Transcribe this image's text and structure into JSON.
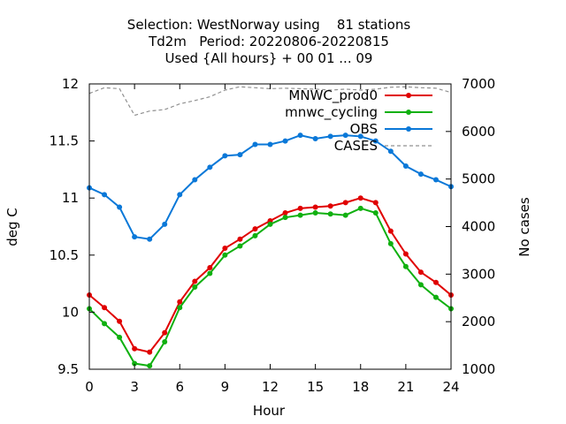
{
  "title_lines": [
    "Selection: WestNorway using    81 stations",
    "Td2m   Period: 20220806-20220815",
    "Used {All hours} + 00 01 ... 09"
  ],
  "colors": {
    "MNWC_prod0": "#e00000",
    "mnwc_cycling": "#10b010",
    "OBS": "#0a78d8",
    "CASES": "#909090"
  },
  "chart_data": {
    "type": "line",
    "title": "Selection: WestNorway using    81 stations\nTd2m   Period: 20220806-20220815\nUsed {All hours} + 00 01 ... 09",
    "xlabel": "Hour",
    "ylabel": "deg C",
    "y2label": "No cases",
    "xlim": [
      0,
      24
    ],
    "ylim": [
      9.5,
      12
    ],
    "y2lim": [
      1000,
      7000
    ],
    "x_ticks": [
      0,
      3,
      6,
      9,
      12,
      15,
      18,
      21,
      24
    ],
    "y_ticks": [
      9.5,
      10,
      10.5,
      11,
      11.5,
      12
    ],
    "y_tick_labels": [
      "9.5",
      "10",
      "10.5",
      "11",
      "11.5",
      "12"
    ],
    "y2_ticks": [
      1000,
      2000,
      3000,
      4000,
      5000,
      6000,
      7000
    ],
    "grid": false,
    "legend_position": "top-right",
    "x": [
      0,
      1,
      2,
      3,
      4,
      5,
      6,
      7,
      8,
      9,
      10,
      11,
      12,
      13,
      14,
      15,
      16,
      17,
      18,
      19,
      20,
      21,
      22,
      23,
      24
    ],
    "series": [
      {
        "name": "MNWC_prod0",
        "axis": "left",
        "values": [
          10.15,
          10.04,
          9.92,
          9.68,
          9.65,
          9.82,
          10.09,
          10.27,
          10.39,
          10.56,
          10.64,
          10.73,
          10.8,
          10.87,
          10.91,
          10.92,
          10.93,
          10.96,
          11.0,
          10.96,
          10.71,
          10.51,
          10.35,
          10.26,
          10.15
        ]
      },
      {
        "name": "mnwc_cycling",
        "axis": "left",
        "values": [
          10.03,
          9.9,
          9.78,
          9.55,
          9.53,
          9.74,
          10.04,
          10.22,
          10.34,
          10.5,
          10.58,
          10.67,
          10.77,
          10.83,
          10.85,
          10.87,
          10.86,
          10.85,
          10.91,
          10.87,
          10.6,
          10.4,
          10.24,
          10.13,
          10.03
        ]
      },
      {
        "name": "OBS",
        "axis": "left",
        "values": [
          11.09,
          11.03,
          10.92,
          10.66,
          10.64,
          10.77,
          11.03,
          11.16,
          11.27,
          11.37,
          11.38,
          11.47,
          11.47,
          11.5,
          11.55,
          11.52,
          11.54,
          11.55,
          11.54,
          11.5,
          11.41,
          11.28,
          11.21,
          11.16,
          11.1
        ]
      },
      {
        "name": "CASES",
        "axis": "right",
        "values": [
          6800,
          6920,
          6900,
          6340,
          6430,
          6460,
          6580,
          6650,
          6730,
          6870,
          6940,
          6920,
          6900,
          6910,
          6900,
          6890,
          6870,
          6890,
          6870,
          6890,
          6930,
          6940,
          6920,
          6910,
          6820
        ]
      }
    ]
  }
}
